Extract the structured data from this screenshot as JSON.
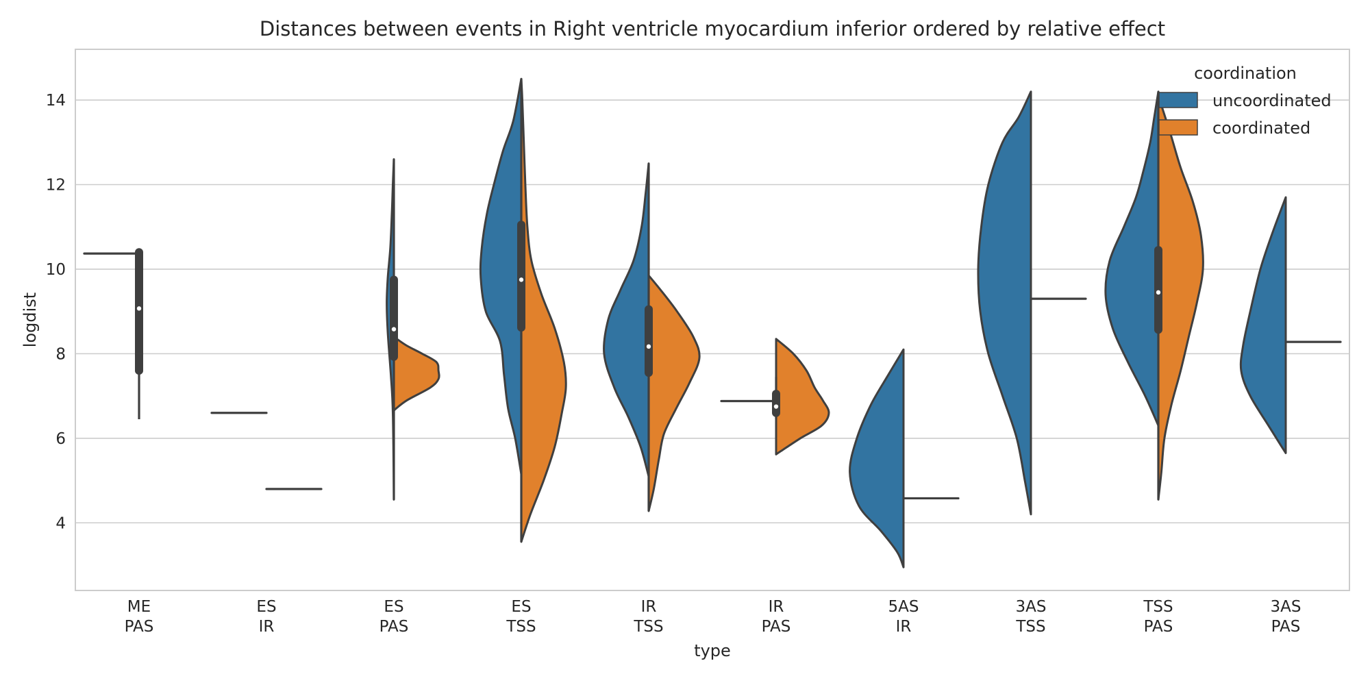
{
  "chart_data": {
    "type": "violin",
    "title": "Distances between events in Right ventricle myocardium inferior ordered by relative effect",
    "xlabel": "type",
    "ylabel": "logdist",
    "ylim": [
      2.4,
      15.2
    ],
    "yticks": [
      4,
      6,
      8,
      10,
      12,
      14
    ],
    "grid": true,
    "legend": {
      "title": "coordination",
      "placement": "top-right",
      "entries": [
        {
          "name": "uncoordinated",
          "color": "#3274a1"
        },
        {
          "name": "coordinated",
          "color": "#e1812c"
        }
      ]
    },
    "categories": [
      {
        "line1": "ME",
        "line2": "PAS"
      },
      {
        "line1": "ES",
        "line2": "IR"
      },
      {
        "line1": "ES",
        "line2": "PAS"
      },
      {
        "line1": "ES",
        "line2": "TSS"
      },
      {
        "line1": "IR",
        "line2": "TSS"
      },
      {
        "line1": "IR",
        "line2": "PAS"
      },
      {
        "line1": "5AS",
        "line2": "IR"
      },
      {
        "line1": "3AS",
        "line2": "TSS"
      },
      {
        "line1": "TSS",
        "line2": "PAS"
      },
      {
        "line1": "3AS",
        "line2": "PAS"
      }
    ],
    "violins": [
      {
        "uncoordinated": {
          "single": 10.37
        },
        "coordinated": null,
        "box": {
          "whisker": [
            6.45,
            10.4
          ],
          "q1": 7.6,
          "q3": 10.4,
          "median": 9.07
        }
      },
      {
        "uncoordinated": {
          "single": 6.6
        },
        "coordinated": {
          "single": 4.8
        },
        "box": null
      },
      {
        "uncoordinated": {
          "min": 4.55,
          "max": 12.6,
          "profile": [
            [
              4.55,
              0.0
            ],
            [
              6.6,
              0.01
            ],
            [
              7.5,
              0.03
            ],
            [
              8.5,
              0.06
            ],
            [
              9.2,
              0.07
            ],
            [
              9.8,
              0.06
            ],
            [
              10.5,
              0.035
            ],
            [
              11.3,
              0.02
            ],
            [
              12.0,
              0.01
            ],
            [
              12.6,
              0.0
            ]
          ]
        },
        "coordinated": {
          "min": 6.65,
          "max": 8.4,
          "profile": [
            [
              6.65,
              0.0
            ],
            [
              6.7,
              0.02
            ],
            [
              6.9,
              0.13
            ],
            [
              7.2,
              0.36
            ],
            [
              7.4,
              0.44
            ],
            [
              7.6,
              0.44
            ],
            [
              7.8,
              0.42
            ],
            [
              8.0,
              0.28
            ],
            [
              8.2,
              0.12
            ],
            [
              8.4,
              0.0
            ]
          ]
        },
        "box": {
          "whisker": [
            4.55,
            12.6
          ],
          "q1": 7.93,
          "q3": 9.75,
          "median": 8.58
        }
      },
      {
        "uncoordinated": {
          "min": 5.15,
          "max": 14.5,
          "profile": [
            [
              5.15,
              0.0
            ],
            [
              6.0,
              0.06
            ],
            [
              6.7,
              0.13
            ],
            [
              7.5,
              0.17
            ],
            [
              8.3,
              0.21
            ],
            [
              9.0,
              0.35
            ],
            [
              9.8,
              0.4
            ],
            [
              10.5,
              0.39
            ],
            [
              11.3,
              0.34
            ],
            [
              12.0,
              0.27
            ],
            [
              12.8,
              0.18
            ],
            [
              13.5,
              0.08
            ],
            [
              14.5,
              0.0
            ]
          ]
        },
        "coordinated": {
          "min": 3.55,
          "max": 14.5,
          "profile": [
            [
              3.55,
              0.0
            ],
            [
              4.2,
              0.09
            ],
            [
              5.0,
              0.22
            ],
            [
              5.8,
              0.33
            ],
            [
              6.6,
              0.4
            ],
            [
              7.2,
              0.44
            ],
            [
              7.8,
              0.42
            ],
            [
              8.6,
              0.33
            ],
            [
              9.4,
              0.2
            ],
            [
              10.2,
              0.1
            ],
            [
              11.0,
              0.06
            ],
            [
              12.0,
              0.04
            ],
            [
              13.0,
              0.025
            ],
            [
              14.0,
              0.01
            ],
            [
              14.5,
              0.0
            ]
          ]
        },
        "box": {
          "whisker": [
            3.55,
            14.5
          ],
          "q1": 8.62,
          "q3": 11.05,
          "median": 9.75
        }
      },
      {
        "uncoordinated": {
          "min": 5.1,
          "max": 12.5,
          "profile": [
            [
              5.1,
              0.0
            ],
            [
              5.8,
              0.08
            ],
            [
              6.5,
              0.2
            ],
            [
              7.2,
              0.34
            ],
            [
              8.0,
              0.44
            ],
            [
              8.8,
              0.4
            ],
            [
              9.5,
              0.28
            ],
            [
              10.2,
              0.15
            ],
            [
              11.0,
              0.07
            ],
            [
              11.8,
              0.03
            ],
            [
              12.5,
              0.0
            ]
          ]
        },
        "coordinated": {
          "min": 4.28,
          "max": 9.85,
          "profile": [
            [
              4.28,
              0.0
            ],
            [
              4.8,
              0.05
            ],
            [
              5.5,
              0.1
            ],
            [
              6.1,
              0.15
            ],
            [
              6.7,
              0.27
            ],
            [
              7.3,
              0.4
            ],
            [
              7.9,
              0.5
            ],
            [
              8.4,
              0.44
            ],
            [
              9.0,
              0.28
            ],
            [
              9.5,
              0.12
            ],
            [
              9.85,
              0.0
            ]
          ]
        },
        "box": {
          "whisker": [
            4.28,
            12.5
          ],
          "q1": 7.55,
          "q3": 9.05,
          "median": 8.17
        }
      },
      {
        "uncoordinated": {
          "single": 6.88
        },
        "coordinated": {
          "min": 5.62,
          "max": 8.35,
          "profile": [
            [
              5.62,
              0.0
            ],
            [
              5.7,
              0.05
            ],
            [
              6.0,
              0.24
            ],
            [
              6.3,
              0.45
            ],
            [
              6.6,
              0.52
            ],
            [
              6.9,
              0.46
            ],
            [
              7.2,
              0.38
            ],
            [
              7.6,
              0.3
            ],
            [
              8.0,
              0.17
            ],
            [
              8.35,
              0.0
            ]
          ]
        },
        "box": {
          "whisker": [
            6.45,
            7.45
          ],
          "q1": 6.6,
          "q3": 7.05,
          "median": 6.75
        }
      },
      {
        "uncoordinated": {
          "min": 2.95,
          "max": 8.1,
          "profile": [
            [
              2.95,
              0.0
            ],
            [
              3.3,
              0.06
            ],
            [
              3.8,
              0.22
            ],
            [
              4.4,
              0.44
            ],
            [
              5.2,
              0.53
            ],
            [
              6.0,
              0.46
            ],
            [
              6.8,
              0.32
            ],
            [
              7.5,
              0.15
            ],
            [
              8.1,
              0.0
            ]
          ]
        },
        "coordinated": {
          "single": 4.58
        },
        "box": null
      },
      {
        "uncoordinated": {
          "min": 4.2,
          "max": 14.2,
          "profile": [
            [
              4.2,
              0.0
            ],
            [
              5.0,
              0.06
            ],
            [
              6.0,
              0.14
            ],
            [
              7.0,
              0.28
            ],
            [
              8.0,
              0.42
            ],
            [
              9.0,
              0.5
            ],
            [
              10.0,
              0.52
            ],
            [
              11.0,
              0.49
            ],
            [
              12.0,
              0.42
            ],
            [
              13.0,
              0.28
            ],
            [
              13.6,
              0.12
            ],
            [
              14.2,
              0.0
            ]
          ]
        },
        "coordinated": {
          "single": 9.3
        },
        "box": null
      },
      {
        "uncoordinated": {
          "min": 6.3,
          "max": 14.2,
          "profile": [
            [
              6.3,
              0.0
            ],
            [
              7.0,
              0.13
            ],
            [
              7.8,
              0.3
            ],
            [
              8.6,
              0.45
            ],
            [
              9.4,
              0.52
            ],
            [
              10.2,
              0.48
            ],
            [
              11.0,
              0.34
            ],
            [
              11.7,
              0.22
            ],
            [
              12.3,
              0.15
            ],
            [
              13.0,
              0.08
            ],
            [
              13.6,
              0.04
            ],
            [
              14.2,
              0.0
            ]
          ]
        },
        "coordinated": {
          "min": 4.55,
          "max": 14.1,
          "profile": [
            [
              4.55,
              0.0
            ],
            [
              5.2,
              0.03
            ],
            [
              6.0,
              0.06
            ],
            [
              6.8,
              0.13
            ],
            [
              7.6,
              0.22
            ],
            [
              8.4,
              0.3
            ],
            [
              9.2,
              0.38
            ],
            [
              10.0,
              0.44
            ],
            [
              10.8,
              0.42
            ],
            [
              11.6,
              0.34
            ],
            [
              12.4,
              0.22
            ],
            [
              13.2,
              0.12
            ],
            [
              14.1,
              0.0
            ]
          ]
        },
        "box": {
          "whisker": [
            4.55,
            14.2
          ],
          "q1": 8.57,
          "q3": 10.45,
          "median": 9.45
        }
      },
      {
        "uncoordinated": {
          "min": 5.65,
          "max": 11.7,
          "profile": [
            [
              5.65,
              0.0
            ],
            [
              5.8,
              0.04
            ],
            [
              6.3,
              0.17
            ],
            [
              7.0,
              0.35
            ],
            [
              7.6,
              0.44
            ],
            [
              8.2,
              0.42
            ],
            [
              9.0,
              0.35
            ],
            [
              10.0,
              0.25
            ],
            [
              10.8,
              0.14
            ],
            [
              11.7,
              0.0
            ]
          ]
        },
        "coordinated": {
          "single": 8.28
        },
        "box": null
      }
    ]
  }
}
